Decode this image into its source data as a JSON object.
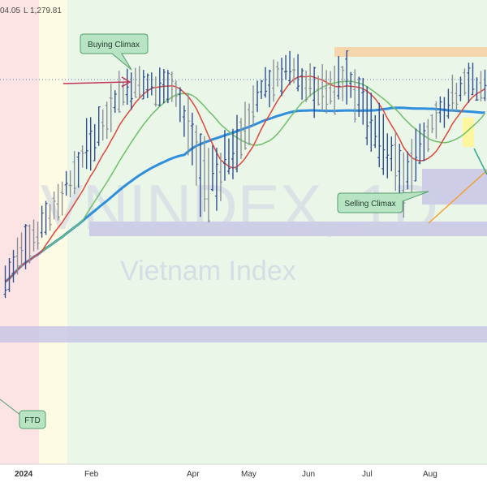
{
  "header": {
    "ohlc_fragment": "04.05",
    "low_label": "L",
    "low_value": "1,279.81"
  },
  "watermark": {
    "line1": "VNINDEX, 1D",
    "line2": "Vietnam Index"
  },
  "colors": {
    "bar_up": "#2f4f8f",
    "bar_down": "#8a8f99",
    "ma_fast": "#e0453a",
    "ma_mid": "#6fbf6a",
    "ma_slow": "#2f8fdc",
    "zone_purple": "#c9c6e8",
    "zone_orange": "#f5d3a8",
    "zone_yellow": "#fff59a",
    "bg_pink": "#fde4e4",
    "bg_cream": "#fdfbe3",
    "bg_green": "#eaf6e8",
    "arrow": "#c0375a",
    "trend_line": "#f0a030",
    "trend_line_teal": "#2fa58f",
    "callout_fill": "#b9e4c4",
    "callout_border": "#4f9f6a"
  },
  "chart_data": {
    "type": "ohlc",
    "title": "VNINDEX, 1D",
    "subtitle": "Vietnam Index",
    "xaxis_labels": [
      "2024",
      "Feb",
      "Apr",
      "May",
      "Jun",
      "Jul",
      "Aug"
    ],
    "y_range": [
      1100,
      1310
    ],
    "annotations": [
      "Buying Climax",
      "Selling Climax",
      "FTD"
    ],
    "series_ohlc": [
      {
        "period": "early Jan",
        "low": 1128,
        "high": 1162
      },
      {
        "period": "late Jan",
        "low": 1160,
        "high": 1192
      },
      {
        "period": "early Feb",
        "low": 1188,
        "high": 1215
      },
      {
        "period": "late Feb",
        "low": 1215,
        "high": 1260
      },
      {
        "period": "early Mar",
        "low": 1255,
        "high": 1285
      },
      {
        "period": "late Mar",
        "low": 1262,
        "high": 1290
      },
      {
        "period": "early Apr",
        "low": 1255,
        "high": 1290
      },
      {
        "period": "mid Apr",
        "low": 1175,
        "high": 1245
      },
      {
        "period": "early May",
        "low": 1205,
        "high": 1250
      },
      {
        "period": "late May",
        "low": 1255,
        "high": 1290
      },
      {
        "period": "early Jun",
        "low": 1268,
        "high": 1305
      },
      {
        "period": "late Jun",
        "low": 1250,
        "high": 1290
      },
      {
        "period": "early Jul",
        "low": 1260,
        "high": 1298
      },
      {
        "period": "late Jul",
        "low": 1225,
        "high": 1270
      },
      {
        "period": "early Aug",
        "low": 1185,
        "high": 1240
      },
      {
        "period": "mid Aug",
        "low": 1232,
        "high": 1265
      },
      {
        "period": "late Aug",
        "low": 1262,
        "high": 1290
      }
    ],
    "moving_averages": [
      "fast",
      "mid",
      "slow"
    ],
    "reference_level": 1280
  }
}
